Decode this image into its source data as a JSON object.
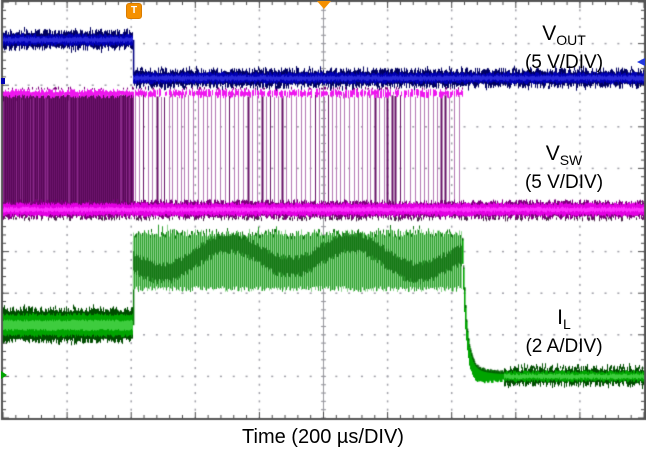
{
  "labels": {
    "vout": {
      "main": "V",
      "sub": "OUT",
      "scale": "(5 V/DIV)"
    },
    "vsw": {
      "main": "V",
      "sub": "SW",
      "scale": "(5 V/DIV)"
    },
    "il": {
      "main": "I",
      "sub": "L",
      "scale": "(2 A/DIV)"
    },
    "time_axis": "Time (200 µs/DIV)",
    "trigger_glyph": "T"
  },
  "colors": {
    "background": "#ffffff",
    "border": "#555555",
    "tick": "#4a4a4a",
    "grid": "#a0a0a8",
    "grid_center": "#9a9aa0",
    "vout_dark": "#000060",
    "vout_core": "#0000b4",
    "vout_bright": "#2a2ada",
    "vsw_dark": "#7a007a",
    "vsw_core": "#e200e2",
    "vsw_bright": "#ff30ff",
    "vsw_block": "#570857",
    "vsw_block_streak": "#6e146e",
    "vsw_pulse": "#b478b4",
    "vsw_pulse_dark": "#661166",
    "vsw_top": "#ee16ee",
    "il_dark": "#004d00",
    "il_core": "#00a400",
    "il_bright": "#3ecc3e",
    "il_light": "#8fd48f",
    "il_mid": "#2a9e2a",
    "il_deep": "#0b6b0b",
    "trigger_orange": "#f59000",
    "arrow_blue": "#2238dd",
    "text": "#000000"
  },
  "chart_data": {
    "type": "line",
    "title": "",
    "xlabel": "Time (200 µs/DIV)",
    "x_range_us": [
      0,
      2000
    ],
    "x_per_div_us": 200,
    "y_units": "display divisions (0 = top of screen, 10 = bottom)",
    "grid": {
      "x_divs": 10,
      "y_divs": 10,
      "minor_per_div": 5,
      "style": "dashed-dotted"
    },
    "events": {
      "load_step_us": 406,
      "switching_stop_us": 1435,
      "trigger_us": 406,
      "center_marker_us": 1000
    },
    "series": [
      {
        "name": "V_OUT",
        "per_div": "5 V/DIV",
        "color": "#0000b4",
        "edge": {
          "at_us": 406,
          "from_div": 0.91,
          "to_div": 1.83
        },
        "segments": [
          {
            "kind": "noisy-flat",
            "from_us": 0,
            "to_us": 406,
            "center_div": 0.91,
            "half_width_div": 0.17
          },
          {
            "kind": "noisy-flat",
            "from_us": 406,
            "to_us": 2000,
            "center_div": 1.83,
            "half_width_div": 0.16
          }
        ]
      },
      {
        "name": "V_SW",
        "per_div": "5 V/DIV",
        "color": "#e200e2",
        "high_div": 2.2,
        "low_div": 4.99,
        "baseline_half_width_div": 0.14,
        "segments": [
          {
            "kind": "dense-switching",
            "from_us": 0,
            "to_us": 406
          },
          {
            "kind": "pulse-switching",
            "from_us": 406,
            "to_us": 1435,
            "pulse_period_us": 13
          },
          {
            "kind": "low-flat",
            "from_us": 1435,
            "to_us": 2000
          }
        ]
      },
      {
        "name": "I_L",
        "per_div": "2 A/DIV",
        "color": "#00a400",
        "segments": [
          {
            "kind": "noisy-flat",
            "from_us": 0,
            "to_us": 406,
            "center_div": 7.77,
            "half_width_div": 0.36
          },
          {
            "kind": "switching-ripple",
            "from_us": 406,
            "to_us": 1433,
            "top_div": 5.55,
            "bottom_div": 6.9
          },
          {
            "kind": "exp-decay",
            "from_us": 1433,
            "to_us": 1568,
            "to_div": 9.0,
            "tau_us": 39
          },
          {
            "kind": "noisy-flat",
            "from_us": 1568,
            "to_us": 2000,
            "center_div": 9.0,
            "half_width_div": 0.16
          }
        ]
      }
    ]
  },
  "markers": {
    "trigger": {
      "glyph": "T",
      "t_us": 406
    },
    "top_center_arrow": {
      "t_us": 1000
    },
    "right_edge_arrow": {
      "y_div": 1.45
    },
    "left_edge_blue_tick": {
      "y_div": 1.9
    },
    "left_edge_green_tick": {
      "y_div": 8.97
    }
  }
}
